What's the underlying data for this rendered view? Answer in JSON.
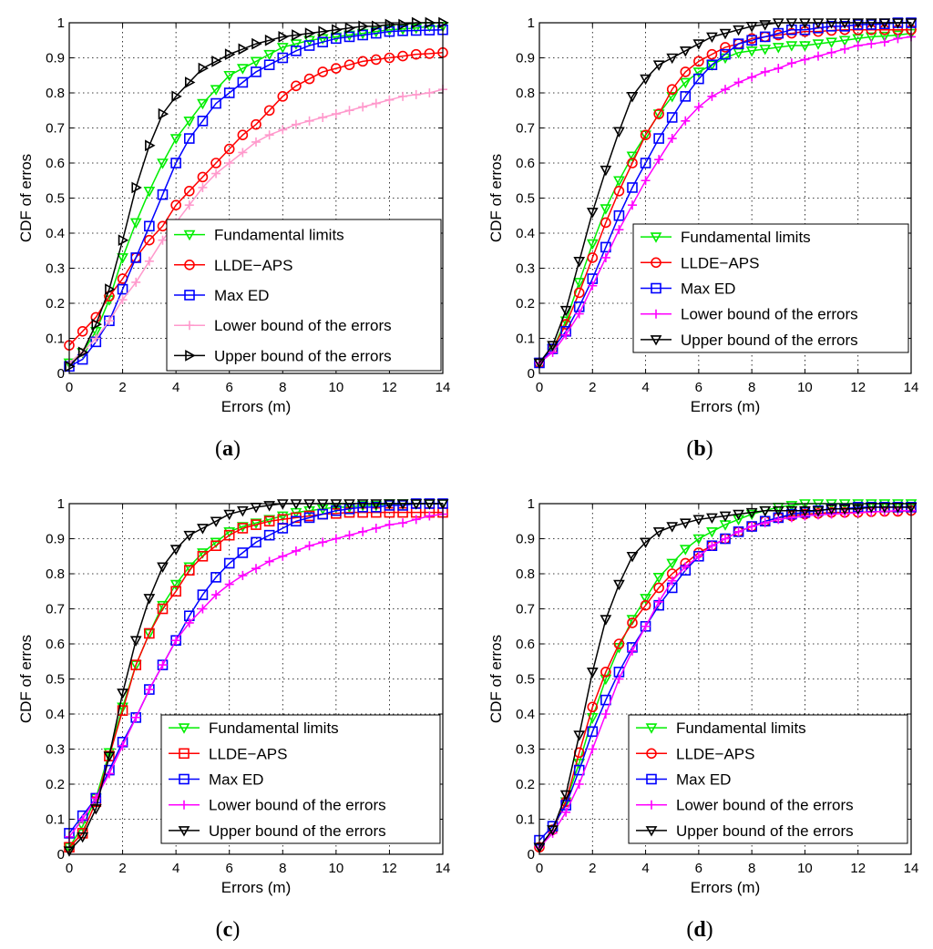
{
  "chart_data": [
    {
      "type": "line",
      "caption": "a",
      "xlabel": "Errors (m)",
      "ylabel": "CDF of erros",
      "xlim": [
        0,
        14
      ],
      "ylim": [
        0,
        1
      ],
      "xticks": [
        0,
        2,
        4,
        6,
        8,
        10,
        12,
        14
      ],
      "yticks": [
        0,
        0.1,
        0.2,
        0.3,
        0.4,
        0.5,
        0.6,
        0.7,
        0.8,
        0.9,
        1
      ],
      "grid": true,
      "legend_position": "lower-right",
      "x": [
        0,
        0.5,
        1,
        1.5,
        2,
        2.5,
        3,
        3.5,
        4,
        4.5,
        5,
        5.5,
        6,
        6.5,
        7,
        7.5,
        8,
        8.5,
        9,
        9.5,
        10,
        10.5,
        11,
        11.5,
        12,
        12.5,
        13,
        13.5,
        14
      ],
      "series": [
        {
          "name": "Fundamental limits",
          "color": "#00ee00",
          "marker": "triangle-down",
          "values": [
            0.03,
            0.06,
            0.12,
            0.21,
            0.33,
            0.43,
            0.52,
            0.6,
            0.67,
            0.72,
            0.77,
            0.81,
            0.85,
            0.87,
            0.89,
            0.91,
            0.93,
            0.94,
            0.95,
            0.955,
            0.96,
            0.965,
            0.97,
            0.975,
            0.98,
            0.982,
            0.985,
            0.99,
            0.99
          ]
        },
        {
          "name": "LLDE−APS",
          "color": "#ff0000",
          "marker": "circle",
          "values": [
            0.08,
            0.12,
            0.16,
            0.22,
            0.27,
            0.33,
            0.38,
            0.42,
            0.48,
            0.52,
            0.56,
            0.6,
            0.64,
            0.68,
            0.71,
            0.75,
            0.79,
            0.82,
            0.84,
            0.86,
            0.87,
            0.88,
            0.89,
            0.895,
            0.9,
            0.905,
            0.91,
            0.912,
            0.915
          ]
        },
        {
          "name": "Max ED",
          "color": "#0000ff",
          "marker": "square",
          "values": [
            0.02,
            0.04,
            0.09,
            0.15,
            0.24,
            0.33,
            0.42,
            0.51,
            0.6,
            0.67,
            0.72,
            0.77,
            0.8,
            0.83,
            0.86,
            0.88,
            0.9,
            0.92,
            0.935,
            0.945,
            0.955,
            0.96,
            0.965,
            0.97,
            0.975,
            0.977,
            0.978,
            0.979,
            0.98
          ]
        },
        {
          "name": "Lower bound of the errors",
          "color": "#ff99cc",
          "marker": "plus",
          "values": [
            0.03,
            0.06,
            0.1,
            0.15,
            0.21,
            0.26,
            0.32,
            0.38,
            0.43,
            0.48,
            0.53,
            0.57,
            0.6,
            0.63,
            0.66,
            0.68,
            0.695,
            0.71,
            0.72,
            0.73,
            0.74,
            0.75,
            0.76,
            0.77,
            0.78,
            0.79,
            0.795,
            0.8,
            0.81
          ]
        },
        {
          "name": "Upper bound of the errors",
          "color": "#000000",
          "marker": "triangle-right",
          "values": [
            0.02,
            0.06,
            0.14,
            0.24,
            0.38,
            0.53,
            0.65,
            0.74,
            0.79,
            0.83,
            0.87,
            0.89,
            0.91,
            0.925,
            0.94,
            0.95,
            0.96,
            0.965,
            0.97,
            0.975,
            0.98,
            0.985,
            0.99,
            0.99,
            0.995,
            0.995,
            1.0,
            1.0,
            1.0
          ]
        }
      ]
    },
    {
      "type": "line",
      "caption": "b",
      "xlabel": "Errors (m)",
      "ylabel": "CDF of erros",
      "xlim": [
        0,
        14
      ],
      "ylim": [
        0,
        1
      ],
      "xticks": [
        0,
        2,
        4,
        6,
        8,
        10,
        12,
        14
      ],
      "yticks": [
        0,
        0.1,
        0.2,
        0.3,
        0.4,
        0.5,
        0.6,
        0.7,
        0.8,
        0.9,
        1
      ],
      "grid": true,
      "legend_position": "lower-right",
      "x": [
        0,
        0.5,
        1,
        1.5,
        2,
        2.5,
        3,
        3.5,
        4,
        4.5,
        5,
        5.5,
        6,
        6.5,
        7,
        7.5,
        8,
        8.5,
        9,
        9.5,
        10,
        10.5,
        11,
        11.5,
        12,
        12.5,
        13,
        13.5,
        14
      ],
      "series": [
        {
          "name": "Fundamental limits",
          "color": "#00ee00",
          "marker": "triangle-down",
          "values": [
            0.03,
            0.07,
            0.15,
            0.26,
            0.37,
            0.47,
            0.55,
            0.62,
            0.68,
            0.74,
            0.79,
            0.83,
            0.86,
            0.88,
            0.9,
            0.915,
            0.92,
            0.925,
            0.93,
            0.935,
            0.935,
            0.94,
            0.945,
            0.95,
            0.955,
            0.96,
            0.962,
            0.965,
            0.97
          ]
        },
        {
          "name": "LLDE−APS",
          "color": "#ff0000",
          "marker": "circle",
          "values": [
            0.03,
            0.07,
            0.14,
            0.23,
            0.33,
            0.43,
            0.52,
            0.6,
            0.68,
            0.74,
            0.81,
            0.86,
            0.89,
            0.91,
            0.93,
            0.94,
            0.955,
            0.96,
            0.965,
            0.97,
            0.975,
            0.975,
            0.978,
            0.98,
            0.98,
            0.98,
            0.98,
            0.98,
            0.98
          ]
        },
        {
          "name": "Max ED",
          "color": "#0000ff",
          "marker": "square",
          "values": [
            0.03,
            0.07,
            0.12,
            0.19,
            0.27,
            0.36,
            0.45,
            0.53,
            0.6,
            0.67,
            0.73,
            0.79,
            0.84,
            0.88,
            0.91,
            0.94,
            0.95,
            0.96,
            0.97,
            0.98,
            0.98,
            0.985,
            0.99,
            0.99,
            0.995,
            0.995,
            0.997,
            1.0,
            1.0
          ]
        },
        {
          "name": "Lower bound of the errors",
          "color": "#ff00ff",
          "marker": "plus",
          "values": [
            0.03,
            0.06,
            0.11,
            0.17,
            0.25,
            0.33,
            0.41,
            0.48,
            0.55,
            0.61,
            0.67,
            0.72,
            0.76,
            0.79,
            0.81,
            0.83,
            0.845,
            0.86,
            0.87,
            0.885,
            0.895,
            0.905,
            0.915,
            0.925,
            0.935,
            0.94,
            0.945,
            0.955,
            0.96
          ]
        },
        {
          "name": "Upper bound of the errors",
          "color": "#000000",
          "marker": "triangle-down",
          "values": [
            0.03,
            0.08,
            0.18,
            0.32,
            0.46,
            0.58,
            0.69,
            0.79,
            0.84,
            0.88,
            0.9,
            0.92,
            0.94,
            0.96,
            0.97,
            0.98,
            0.99,
            0.995,
            1.0,
            1.0,
            1.0,
            1.0,
            1.0,
            1.0,
            1.0,
            1.0,
            1.0,
            1.0,
            1.0
          ]
        }
      ]
    },
    {
      "type": "line",
      "caption": "c",
      "xlabel": "Errors (m)",
      "ylabel": "CDF of erros",
      "xlim": [
        0,
        14
      ],
      "ylim": [
        0,
        1
      ],
      "xticks": [
        0,
        2,
        4,
        6,
        8,
        10,
        12,
        14
      ],
      "yticks": [
        0,
        0.1,
        0.2,
        0.3,
        0.4,
        0.5,
        0.6,
        0.7,
        0.8,
        0.9,
        1
      ],
      "grid": true,
      "legend_position": "lower-right",
      "x": [
        0,
        0.5,
        1,
        1.5,
        2,
        2.5,
        3,
        3.5,
        4,
        4.5,
        5,
        5.5,
        6,
        6.5,
        7,
        7.5,
        8,
        8.5,
        9,
        9.5,
        10,
        10.5,
        11,
        11.5,
        12,
        12.5,
        13,
        13.5,
        14
      ],
      "series": [
        {
          "name": "Fundamental limits",
          "color": "#00ee00",
          "marker": "triangle-down",
          "values": [
            0.02,
            0.08,
            0.16,
            0.29,
            0.42,
            0.54,
            0.63,
            0.71,
            0.77,
            0.82,
            0.86,
            0.89,
            0.92,
            0.935,
            0.945,
            0.955,
            0.965,
            0.975,
            0.98,
            0.985,
            0.99,
            0.99,
            0.995,
            0.995,
            1.0,
            1.0,
            1.0,
            1.0,
            1.0
          ]
        },
        {
          "name": "LLDE−APS",
          "color": "#ff0000",
          "marker": "square",
          "values": [
            0.02,
            0.06,
            0.15,
            0.28,
            0.41,
            0.54,
            0.63,
            0.7,
            0.75,
            0.81,
            0.85,
            0.88,
            0.91,
            0.93,
            0.94,
            0.95,
            0.955,
            0.96,
            0.965,
            0.97,
            0.972,
            0.975,
            0.975,
            0.975,
            0.975,
            0.975,
            0.975,
            0.975,
            0.975
          ]
        },
        {
          "name": "Max ED",
          "color": "#0000ff",
          "marker": "square",
          "values": [
            0.06,
            0.11,
            0.16,
            0.24,
            0.32,
            0.39,
            0.47,
            0.54,
            0.61,
            0.68,
            0.74,
            0.79,
            0.83,
            0.86,
            0.89,
            0.91,
            0.93,
            0.95,
            0.96,
            0.97,
            0.98,
            0.985,
            0.99,
            0.99,
            0.995,
            0.995,
            1.0,
            1.0,
            1.0
          ]
        },
        {
          "name": "Lower bound of the errors",
          "color": "#ff00ff",
          "marker": "plus",
          "values": [
            0.05,
            0.1,
            0.16,
            0.23,
            0.31,
            0.39,
            0.47,
            0.54,
            0.61,
            0.66,
            0.7,
            0.74,
            0.77,
            0.795,
            0.815,
            0.835,
            0.85,
            0.865,
            0.88,
            0.89,
            0.9,
            0.91,
            0.92,
            0.93,
            0.94,
            0.945,
            0.955,
            0.965,
            0.97
          ]
        },
        {
          "name": "Upper bound of the errors",
          "color": "#000000",
          "marker": "triangle-down",
          "values": [
            0.01,
            0.05,
            0.13,
            0.28,
            0.46,
            0.61,
            0.73,
            0.82,
            0.87,
            0.91,
            0.93,
            0.95,
            0.97,
            0.98,
            0.99,
            0.995,
            1.0,
            1.0,
            1.0,
            1.0,
            1.0,
            1.0,
            1.0,
            1.0,
            1.0,
            1.0,
            1.0,
            1.0,
            1.0
          ]
        }
      ]
    },
    {
      "type": "line",
      "caption": "d",
      "xlabel": "Errors (m)",
      "ylabel": "CDF of erros",
      "xlim": [
        0,
        14
      ],
      "ylim": [
        0,
        1
      ],
      "xticks": [
        0,
        2,
        4,
        6,
        8,
        10,
        12,
        14
      ],
      "yticks": [
        0,
        0.1,
        0.2,
        0.3,
        0.4,
        0.5,
        0.6,
        0.7,
        0.8,
        0.9,
        1
      ],
      "grid": true,
      "legend_position": "lower-right",
      "x": [
        0,
        0.5,
        1,
        1.5,
        2,
        2.5,
        3,
        3.5,
        4,
        4.5,
        5,
        5.5,
        6,
        6.5,
        7,
        7.5,
        8,
        8.5,
        9,
        9.5,
        10,
        10.5,
        11,
        11.5,
        12,
        12.5,
        13,
        13.5,
        14
      ],
      "series": [
        {
          "name": "Fundamental limits",
          "color": "#00ee00",
          "marker": "triangle-down",
          "values": [
            0.02,
            0.07,
            0.15,
            0.26,
            0.39,
            0.5,
            0.59,
            0.67,
            0.73,
            0.79,
            0.83,
            0.87,
            0.9,
            0.92,
            0.94,
            0.955,
            0.97,
            0.98,
            0.99,
            0.995,
            1.0,
            1.0,
            1.0,
            1.0,
            1.0,
            1.0,
            1.0,
            1.0,
            1.0
          ]
        },
        {
          "name": "LLDE−APS",
          "color": "#ff0000",
          "marker": "circle",
          "values": [
            0.02,
            0.07,
            0.15,
            0.29,
            0.42,
            0.52,
            0.6,
            0.66,
            0.71,
            0.76,
            0.8,
            0.83,
            0.86,
            0.88,
            0.9,
            0.92,
            0.935,
            0.95,
            0.96,
            0.965,
            0.97,
            0.972,
            0.975,
            0.975,
            0.975,
            0.977,
            0.978,
            0.978,
            0.98
          ]
        },
        {
          "name": "Max ED",
          "color": "#0000ff",
          "marker": "square",
          "values": [
            0.04,
            0.08,
            0.14,
            0.24,
            0.35,
            0.44,
            0.52,
            0.59,
            0.65,
            0.71,
            0.76,
            0.81,
            0.85,
            0.88,
            0.9,
            0.92,
            0.935,
            0.95,
            0.96,
            0.97,
            0.975,
            0.98,
            0.985,
            0.985,
            0.99,
            0.99,
            0.99,
            0.99,
            0.99
          ]
        },
        {
          "name": "Lower bound of the errors",
          "color": "#ff00ff",
          "marker": "plus",
          "values": [
            0.02,
            0.06,
            0.12,
            0.2,
            0.3,
            0.4,
            0.5,
            0.58,
            0.65,
            0.72,
            0.78,
            0.82,
            0.85,
            0.88,
            0.9,
            0.92,
            0.935,
            0.945,
            0.955,
            0.96,
            0.965,
            0.968,
            0.97,
            0.972,
            0.974,
            0.976,
            0.978,
            0.98,
            0.98
          ]
        },
        {
          "name": "Upper bound of the errors",
          "color": "#000000",
          "marker": "triangle-down",
          "values": [
            0.02,
            0.07,
            0.17,
            0.34,
            0.52,
            0.67,
            0.77,
            0.85,
            0.89,
            0.92,
            0.935,
            0.945,
            0.955,
            0.96,
            0.965,
            0.97,
            0.975,
            0.98,
            0.98,
            0.98,
            0.98,
            0.98,
            0.985,
            0.985,
            0.985,
            0.99,
            0.99,
            0.99,
            0.99
          ]
        }
      ]
    }
  ]
}
